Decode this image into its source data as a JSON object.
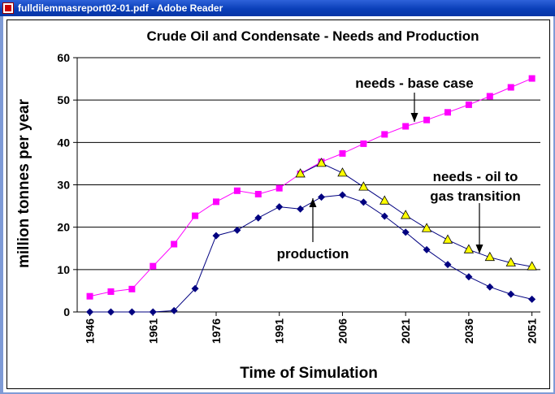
{
  "window": {
    "title": "fulldilemmasreport02-01.pdf - Adobe Reader",
    "app_icon": "pdf-icon"
  },
  "chart_data": {
    "type": "line",
    "title": "Crude Oil and Condensate - Needs and Production",
    "xlabel": "Time of Simulation",
    "ylabel": "million tonnes per year",
    "x_tick_labels": [
      "1946",
      "1961",
      "1976",
      "1991",
      "2006",
      "2021",
      "2036",
      "2051"
    ],
    "x_tick_values": [
      1946,
      1961,
      1976,
      1991,
      2006,
      2021,
      2036,
      2051
    ],
    "y_tick_labels": [
      "0",
      "10",
      "20",
      "30",
      "40",
      "50",
      "60"
    ],
    "xlim": [
      1943,
      2053
    ],
    "ylim": [
      0,
      60
    ],
    "grid": "horizontal",
    "series": [
      {
        "name": "needs - base case",
        "marker": "square",
        "color": "#ff00ff",
        "x": [
          1946,
          1951,
          1956,
          1961,
          1966,
          1971,
          1976,
          1981,
          1986,
          1991,
          1996,
          2001,
          2006,
          2011,
          2016,
          2021,
          2026,
          2031,
          2036,
          2041,
          2046,
          2051
        ],
        "y": [
          3.7,
          4.8,
          5.4,
          10.8,
          16.0,
          22.7,
          26.0,
          28.6,
          27.8,
          29.2,
          32.6,
          35.4,
          37.4,
          39.7,
          41.9,
          43.8,
          45.3,
          47.1,
          48.9,
          50.9,
          53.0,
          55.1
        ]
      },
      {
        "name": "needs - oil to gas transition",
        "marker": "triangle",
        "color": "#ffff00",
        "x": [
          1996,
          2001,
          2006,
          2011,
          2016,
          2021,
          2026,
          2031,
          2036,
          2041,
          2046,
          2051
        ],
        "y": [
          32.6,
          35.1,
          32.8,
          29.5,
          26.2,
          22.8,
          19.7,
          17.0,
          14.7,
          12.9,
          11.6,
          10.7
        ]
      },
      {
        "name": "production",
        "marker": "diamond",
        "color": "#000080",
        "x": [
          1946,
          1951,
          1956,
          1961,
          1966,
          1971,
          1976,
          1981,
          1986,
          1991,
          1996,
          2001,
          2006,
          2011,
          2016,
          2021,
          2026,
          2031,
          2036,
          2041,
          2046,
          2051
        ],
        "y": [
          0,
          0,
          0,
          0,
          0.3,
          5.5,
          18.0,
          19.3,
          22.2,
          24.8,
          24.3,
          27.1,
          27.6,
          25.9,
          22.6,
          18.8,
          14.7,
          11.2,
          8.3,
          5.9,
          4.2,
          3.0
        ]
      }
    ],
    "annotations": [
      {
        "text": "needs - base case",
        "lines": [
          "needs - base case"
        ]
      },
      {
        "text": "needs - oil to gas transition",
        "lines": [
          "needs - oil to",
          "gas transition"
        ]
      },
      {
        "text": "production",
        "lines": [
          "production"
        ]
      }
    ]
  }
}
